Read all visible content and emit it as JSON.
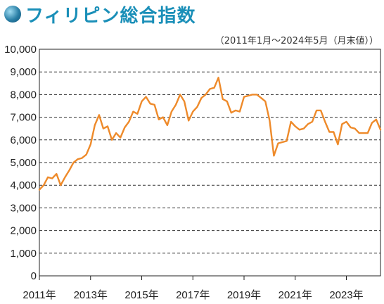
{
  "title": "フィリピン総合指数",
  "note": "（2011年1月〜2024年5月（月末値））",
  "colors": {
    "title": "#1a8fb8",
    "line": "#ee8a2a",
    "grid": "#333333",
    "bullet": "#2a7fa6"
  },
  "chart_data": {
    "type": "line",
    "title": "フィリピン総合指数",
    "xlabel": "",
    "ylabel": "",
    "ylim": [
      0,
      10000
    ],
    "yticks": [
      0,
      1000,
      2000,
      3000,
      4000,
      5000,
      6000,
      7000,
      8000,
      9000,
      10000
    ],
    "ytick_labels": [
      "0",
      "1,000",
      "2,000",
      "3,000",
      "4,000",
      "5,000",
      "6,000",
      "7,000",
      "8,000",
      "9,000",
      "10,000"
    ],
    "xlim": [
      "2011-01",
      "2024-05"
    ],
    "xticks": [
      "2011-01",
      "2013-01",
      "2015-01",
      "2017-01",
      "2019-01",
      "2021-01",
      "2023-01"
    ],
    "xtick_labels": [
      "2011年",
      "2013年",
      "2015年",
      "2017年",
      "2019年",
      "2021年",
      "2023年"
    ],
    "grid": "horizontal-dashed",
    "series": [
      {
        "values": [
          [
            "2011-01",
            3800
          ],
          [
            "2011-03",
            4000
          ],
          [
            "2011-05",
            4350
          ],
          [
            "2011-07",
            4300
          ],
          [
            "2011-09",
            4500
          ],
          [
            "2011-11",
            4000
          ],
          [
            "2012-01",
            4350
          ],
          [
            "2012-03",
            4650
          ],
          [
            "2012-05",
            5000
          ],
          [
            "2012-07",
            5150
          ],
          [
            "2012-09",
            5200
          ],
          [
            "2012-11",
            5350
          ],
          [
            "2013-01",
            5800
          ],
          [
            "2013-03",
            6650
          ],
          [
            "2013-05",
            7100
          ],
          [
            "2013-07",
            6500
          ],
          [
            "2013-09",
            6600
          ],
          [
            "2013-11",
            6000
          ],
          [
            "2014-01",
            6300
          ],
          [
            "2014-03",
            6100
          ],
          [
            "2014-05",
            6550
          ],
          [
            "2014-07",
            6800
          ],
          [
            "2014-09",
            7250
          ],
          [
            "2014-11",
            7150
          ],
          [
            "2015-01",
            7700
          ],
          [
            "2015-03",
            7900
          ],
          [
            "2015-05",
            7600
          ],
          [
            "2015-07",
            7550
          ],
          [
            "2015-09",
            6900
          ],
          [
            "2015-11",
            7000
          ],
          [
            "2016-01",
            6650
          ],
          [
            "2016-03",
            7250
          ],
          [
            "2016-05",
            7550
          ],
          [
            "2016-07",
            8000
          ],
          [
            "2016-09",
            7700
          ],
          [
            "2016-11",
            6850
          ],
          [
            "2017-01",
            7250
          ],
          [
            "2017-03",
            7450
          ],
          [
            "2017-05",
            7850
          ],
          [
            "2017-07",
            8000
          ],
          [
            "2017-09",
            8250
          ],
          [
            "2017-11",
            8300
          ],
          [
            "2018-01",
            8750
          ],
          [
            "2018-03",
            7800
          ],
          [
            "2018-05",
            7700
          ],
          [
            "2018-07",
            7200
          ],
          [
            "2018-09",
            7300
          ],
          [
            "2018-11",
            7250
          ],
          [
            "2019-01",
            7900
          ],
          [
            "2019-03",
            7950
          ],
          [
            "2019-05",
            8000
          ],
          [
            "2019-07",
            8000
          ],
          [
            "2019-09",
            7850
          ],
          [
            "2019-11",
            7700
          ],
          [
            "2020-01",
            6850
          ],
          [
            "2020-03",
            5300
          ],
          [
            "2020-05",
            5850
          ],
          [
            "2020-07",
            5900
          ],
          [
            "2020-09",
            5950
          ],
          [
            "2020-11",
            6800
          ],
          [
            "2021-01",
            6600
          ],
          [
            "2021-03",
            6450
          ],
          [
            "2021-05",
            6500
          ],
          [
            "2021-07",
            6700
          ],
          [
            "2021-09",
            6800
          ],
          [
            "2021-11",
            7300
          ],
          [
            "2022-01",
            7300
          ],
          [
            "2022-03",
            6800
          ],
          [
            "2022-05",
            6350
          ],
          [
            "2022-07",
            6350
          ],
          [
            "2022-09",
            5800
          ],
          [
            "2022-11",
            6700
          ],
          [
            "2023-01",
            6800
          ],
          [
            "2023-03",
            6550
          ],
          [
            "2023-05",
            6500
          ],
          [
            "2023-07",
            6300
          ],
          [
            "2023-09",
            6300
          ],
          [
            "2023-11",
            6300
          ],
          [
            "2024-01",
            6750
          ],
          [
            "2024-03",
            6900
          ],
          [
            "2024-05",
            6450
          ]
        ]
      }
    ]
  }
}
